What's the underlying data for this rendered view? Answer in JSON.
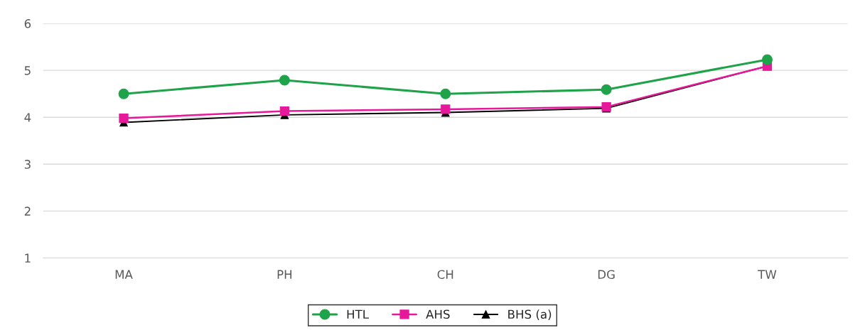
{
  "chart_data": {
    "type": "line",
    "categories": [
      "MA",
      "PH",
      "CH",
      "DG",
      "TW"
    ],
    "series": [
      {
        "name": "HTL",
        "color": "#1fa34a",
        "marker": "circle",
        "values": [
          4.5,
          4.79,
          4.5,
          4.59,
          5.23
        ]
      },
      {
        "name": "AHS",
        "color": "#e6199b",
        "marker": "square",
        "values": [
          3.98,
          4.13,
          4.17,
          4.22,
          5.09
        ]
      },
      {
        "name": "BHS (a)",
        "color": "#000000",
        "marker": "triangle",
        "values": [
          3.89,
          4.05,
          4.1,
          4.19,
          5.09
        ]
      }
    ],
    "ylim": [
      1,
      6
    ],
    "yticks": [
      1,
      2,
      3,
      4,
      5,
      6
    ],
    "grid": "y",
    "legend": "bottom",
    "line_style": "solid"
  }
}
